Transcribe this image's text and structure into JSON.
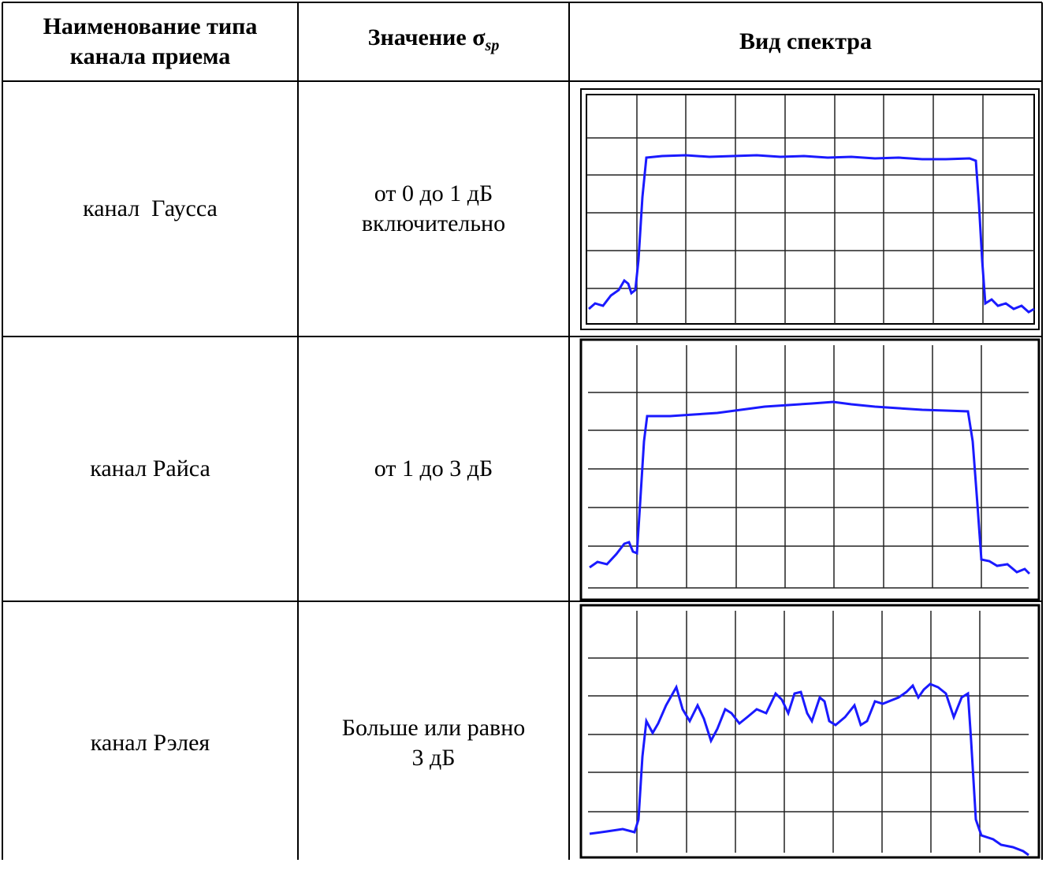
{
  "table": {
    "header": [
      {
        "lines": [
          "Наименование типа",
          "канала приема"
        ]
      },
      {
        "text": "Значение σ",
        "subscript": "sp"
      },
      {
        "lines": [
          "Вид спектра"
        ]
      }
    ],
    "rows": [
      [
        {
          "lines": [
            "канал  Гаусса"
          ]
        },
        {
          "lines": [
            "от 0 до 1 дБ",
            "включительно"
          ]
        }
      ],
      [
        {
          "lines": [
            "канал Райса"
          ]
        },
        {
          "lines": [
            "от 1 до 3 дБ"
          ]
        }
      ],
      [
        {
          "lines": [
            "канал Рэлея"
          ]
        },
        {
          "lines": [
            "Больше или равно",
            "3 дБ"
          ]
        }
      ]
    ]
  }
}
